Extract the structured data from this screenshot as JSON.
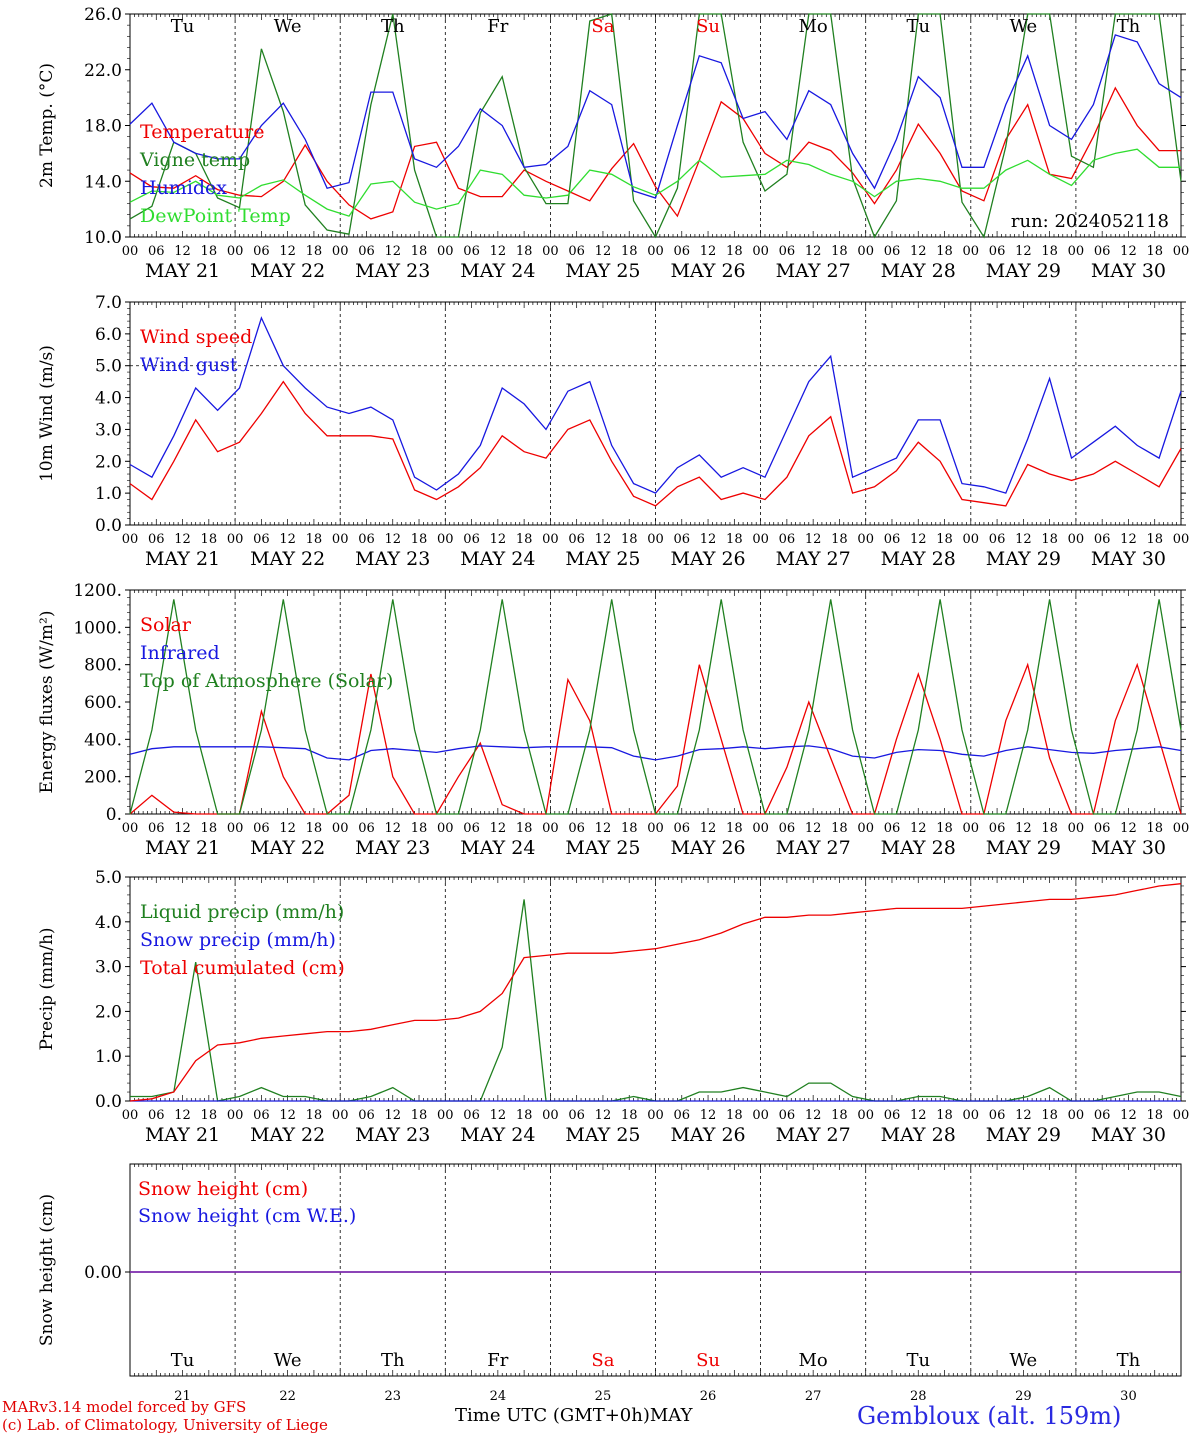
{
  "colors": {
    "temperature": "#ee0000",
    "vigne": "#208020",
    "humidex": "#1818e0",
    "dewpoint": "#30dd30",
    "solar": "#ee0000",
    "infrared": "#1818e0",
    "toa": "#208020",
    "liquid": "#208020",
    "snow": "#1818e0",
    "total": "#ee0000",
    "snow_height": "#ee0000",
    "snow_we": "#1818e0",
    "weekend": "#ee0000"
  },
  "day_names": [
    "Tu",
    "We",
    "Th",
    "Fr",
    "Sa",
    "Su",
    "Mo",
    "Tu",
    "We",
    "Th"
  ],
  "day_numbers": [
    "21",
    "22",
    "23",
    "24",
    "25",
    "26",
    "27",
    "28",
    "29",
    "30"
  ],
  "weekend_days": [
    4,
    5
  ],
  "date_labels": [
    "MAY 21",
    "MAY 22",
    "MAY 23",
    "MAY 24",
    "MAY 25",
    "MAY 26",
    "MAY 27",
    "MAY 28",
    "MAY 29",
    "MAY 30"
  ],
  "hour_ticks": [
    "00",
    "06",
    "12",
    "18"
  ],
  "run_label": "run: 2024052118",
  "footer": {
    "model_line": "MARv3.14 model forced by GFS",
    "lab_line": "(c) Lab. of Climatology, University of Liege",
    "x_axis_label": "Time UTC (GMT+0h)",
    "month": "MAY",
    "station": "Gembloux (alt. 159m)"
  },
  "chart_data": [
    {
      "type": "line",
      "ylabel": "2m Temp. (°C)",
      "ylim": [
        10,
        26
      ],
      "yticks": [
        "10.0",
        "14.0",
        "18.0",
        "22.0",
        "26.0"
      ],
      "x_start": "2024-05-21 00:00",
      "x_step_hours": 6,
      "legend": [
        "Temperature",
        "Vigne temp",
        "Humidex",
        "DewPoint Temp"
      ],
      "series": [
        {
          "name": "Temperature",
          "values": [
            14.6,
            13.6,
            13.5,
            14.4,
            13.4,
            13.0,
            12.9,
            14.0,
            16.6,
            14.0,
            12.3,
            11.3,
            11.8,
            16.5,
            16.8,
            13.5,
            12.9,
            12.9,
            14.8,
            14.0,
            13.3,
            12.6,
            14.9,
            16.7,
            13.6,
            11.5,
            15.5,
            19.7,
            18.5,
            16.0,
            15.0,
            16.8,
            16.2,
            14.6,
            12.4,
            14.8,
            18.1,
            16.0,
            13.3,
            12.6,
            17.0,
            19.5,
            14.5,
            14.2,
            17.2,
            20.7,
            18.0,
            16.2,
            16.2
          ]
        },
        {
          "name": "Vigne temp",
          "values": [
            11.3,
            12.2,
            16.8,
            16.0,
            12.8,
            12.1,
            23.5,
            19.0,
            12.3,
            10.5,
            10.2,
            19.5,
            26.0,
            14.8,
            10.0,
            10.0,
            18.9,
            21.5,
            15.0,
            12.4,
            12.4,
            25.5,
            26.0,
            12.6,
            10.0,
            13.5,
            26.0,
            26.0,
            16.8,
            13.3,
            14.5,
            26.0,
            26.0,
            14.2,
            10.0,
            12.6,
            26.0,
            26.0,
            12.5,
            10.0,
            16.5,
            26.0,
            26.0,
            15.8,
            15.0,
            26.0,
            26.0,
            26.0,
            14.0
          ]
        },
        {
          "name": "Humidex",
          "values": [
            18.1,
            19.6,
            16.8,
            16.0,
            15.6,
            15.6,
            18.0,
            19.6,
            17.0,
            13.5,
            13.9,
            20.4,
            20.4,
            15.6,
            15.0,
            16.5,
            19.2,
            18.0,
            15.0,
            15.2,
            16.5,
            20.5,
            19.5,
            13.3,
            12.8,
            18.0,
            23.0,
            22.5,
            18.5,
            19.0,
            17.0,
            20.5,
            19.5,
            16.0,
            13.5,
            17.0,
            21.5,
            20.0,
            15.0,
            15.0,
            19.5,
            23.0,
            18.0,
            17.0,
            19.5,
            24.5,
            24.0,
            21.0,
            20.0
          ]
        },
        {
          "name": "DewPoint Temp",
          "values": [
            12.5,
            13.3,
            13.2,
            14.0,
            13.0,
            12.8,
            13.7,
            14.1,
            13.0,
            12.0,
            11.5,
            13.8,
            14.0,
            12.5,
            12.0,
            12.4,
            14.8,
            14.5,
            13.0,
            12.8,
            13.0,
            14.8,
            14.5,
            13.6,
            13.0,
            14.0,
            15.5,
            14.3,
            14.4,
            14.5,
            15.5,
            15.2,
            14.5,
            14.0,
            12.9,
            14.0,
            14.2,
            14.0,
            13.5,
            13.5,
            14.8,
            15.5,
            14.5,
            13.7,
            15.5,
            16.0,
            16.3,
            15.0,
            15.0
          ]
        }
      ]
    },
    {
      "type": "line",
      "ylabel": "10m Wind (m/s)",
      "ylim": [
        0,
        7
      ],
      "yticks": [
        "0.0",
        "1.0",
        "2.0",
        "3.0",
        "4.0",
        "5.0",
        "6.0",
        "7.0"
      ],
      "dashed_y": 5,
      "x_start": "2024-05-21 00:00",
      "x_step_hours": 6,
      "legend": [
        "Wind speed",
        "Wind gust"
      ],
      "series": [
        {
          "name": "Wind speed",
          "values": [
            1.3,
            0.8,
            2.0,
            3.3,
            2.3,
            2.6,
            3.5,
            4.5,
            3.5,
            2.8,
            2.8,
            2.8,
            2.7,
            1.1,
            0.8,
            1.2,
            1.8,
            2.8,
            2.3,
            2.1,
            3.0,
            3.3,
            2.0,
            0.9,
            0.6,
            1.2,
            1.5,
            0.8,
            1.0,
            0.8,
            1.5,
            2.8,
            3.4,
            1.0,
            1.2,
            1.7,
            2.6,
            2.0,
            0.8,
            0.7,
            0.6,
            1.9,
            1.6,
            1.4,
            1.6,
            2.0,
            1.6,
            1.2,
            2.4
          ]
        },
        {
          "name": "Wind gust",
          "values": [
            1.9,
            1.5,
            2.8,
            4.3,
            3.6,
            4.3,
            6.5,
            5.0,
            4.3,
            3.7,
            3.5,
            3.7,
            3.3,
            1.5,
            1.1,
            1.6,
            2.5,
            4.3,
            3.8,
            3.0,
            4.2,
            4.5,
            2.5,
            1.3,
            1.0,
            1.8,
            2.2,
            1.5,
            1.8,
            1.5,
            3.0,
            4.5,
            5.3,
            1.5,
            1.8,
            2.1,
            3.3,
            3.3,
            1.3,
            1.2,
            1.0,
            2.7,
            4.6,
            2.1,
            2.6,
            3.1,
            2.5,
            2.1,
            4.2
          ]
        }
      ]
    },
    {
      "type": "line",
      "ylabel": "Energy fluxes (W/m²)",
      "ylim": [
        0,
        1200
      ],
      "yticks": [
        "0.",
        "200.",
        "400.",
        "600.",
        "800.",
        "1000.",
        "1200."
      ],
      "x_start": "2024-05-21 00:00",
      "x_step_hours": 6,
      "legend": [
        "Solar",
        "Infrared",
        "Top of Atmosphere (Solar)"
      ],
      "series": [
        {
          "name": "Solar",
          "values": [
            0,
            100,
            10,
            0,
            0,
            0,
            550,
            200,
            0,
            0,
            100,
            750,
            200,
            0,
            0,
            200,
            380,
            50,
            0,
            0,
            720,
            500,
            0,
            0,
            0,
            150,
            800,
            400,
            0,
            0,
            250,
            600,
            300,
            0,
            0,
            400,
            750,
            400,
            0,
            0,
            500,
            800,
            300,
            0,
            0,
            500,
            800,
            400,
            0
          ]
        },
        {
          "name": "Infrared",
          "values": [
            320,
            350,
            360,
            360,
            360,
            360,
            360,
            355,
            350,
            300,
            290,
            340,
            350,
            340,
            330,
            350,
            365,
            360,
            355,
            360,
            360,
            360,
            355,
            310,
            290,
            310,
            345,
            350,
            360,
            350,
            360,
            365,
            350,
            310,
            300,
            330,
            345,
            340,
            320,
            310,
            340,
            360,
            345,
            330,
            325,
            340,
            350,
            360,
            340
          ]
        },
        {
          "name": "Top of Atmosphere (Solar)",
          "values": [
            0,
            450,
            1150,
            450,
            0,
            0,
            450,
            1150,
            450,
            0,
            0,
            450,
            1150,
            450,
            0,
            0,
            450,
            1150,
            450,
            0,
            0,
            450,
            1150,
            450,
            0,
            0,
            450,
            1150,
            450,
            0,
            0,
            450,
            1150,
            450,
            0,
            0,
            450,
            1150,
            450,
            0,
            0,
            450,
            1150,
            450,
            0,
            0,
            450,
            1150,
            450
          ]
        }
      ]
    },
    {
      "type": "line",
      "ylabel": "Precip (mm/h)",
      "ylim": [
        0,
        5
      ],
      "yticks": [
        "0.0",
        "1.0",
        "2.0",
        "3.0",
        "4.0",
        "5.0"
      ],
      "x_start": "2024-05-21 00:00",
      "x_step_hours": 6,
      "legend": [
        "Liquid precip (mm/h)",
        "Snow precip (mm/h)",
        "Total cumulated (cm)"
      ],
      "series": [
        {
          "name": "Liquid precip (mm/h)",
          "values": [
            0.1,
            0.1,
            0.2,
            3.1,
            0.0,
            0.1,
            0.3,
            0.1,
            0.1,
            0.0,
            0.0,
            0.1,
            0.3,
            0.0,
            0.0,
            0.0,
            0.0,
            1.2,
            4.5,
            0.0,
            0.0,
            0.0,
            0.0,
            0.1,
            0.0,
            0.0,
            0.2,
            0.2,
            0.3,
            0.2,
            0.1,
            0.4,
            0.4,
            0.1,
            0.0,
            0.0,
            0.1,
            0.1,
            0.0,
            0.0,
            0.0,
            0.1,
            0.3,
            0.0,
            0.0,
            0.1,
            0.2,
            0.2,
            0.1
          ]
        },
        {
          "name": "Snow precip (mm/h)",
          "values": [
            0,
            0,
            0,
            0,
            0,
            0,
            0,
            0,
            0,
            0,
            0,
            0,
            0,
            0,
            0,
            0,
            0,
            0,
            0,
            0,
            0,
            0,
            0,
            0,
            0,
            0,
            0,
            0,
            0,
            0,
            0,
            0,
            0,
            0,
            0,
            0,
            0,
            0,
            0,
            0,
            0,
            0,
            0,
            0,
            0,
            0,
            0,
            0,
            0
          ]
        },
        {
          "name": "Total cumulated (cm)",
          "values": [
            0.0,
            0.05,
            0.2,
            0.9,
            1.25,
            1.3,
            1.4,
            1.45,
            1.5,
            1.55,
            1.55,
            1.6,
            1.7,
            1.8,
            1.8,
            1.85,
            2.0,
            2.4,
            3.2,
            3.25,
            3.3,
            3.3,
            3.3,
            3.35,
            3.4,
            3.5,
            3.6,
            3.75,
            3.95,
            4.1,
            4.1,
            4.15,
            4.15,
            4.2,
            4.25,
            4.3,
            4.3,
            4.3,
            4.3,
            4.35,
            4.4,
            4.45,
            4.5,
            4.5,
            4.55,
            4.6,
            4.7,
            4.8,
            4.85
          ]
        }
      ]
    },
    {
      "type": "line",
      "ylabel": "Snow height (cm)",
      "yticks": [
        "0.00"
      ],
      "x_start": "2024-05-21 00:00",
      "x_step_hours": 6,
      "legend": [
        "Snow height (cm)",
        "Snow height (cm W.E.)"
      ],
      "series": [
        {
          "name": "Snow height (cm)",
          "values": [
            0,
            0,
            0,
            0,
            0,
            0,
            0,
            0,
            0,
            0,
            0,
            0,
            0,
            0,
            0,
            0,
            0,
            0,
            0,
            0,
            0,
            0,
            0,
            0,
            0,
            0,
            0,
            0,
            0,
            0,
            0,
            0,
            0,
            0,
            0,
            0,
            0,
            0,
            0,
            0,
            0,
            0,
            0,
            0,
            0,
            0,
            0,
            0,
            0
          ]
        },
        {
          "name": "Snow height (cm W.E.)",
          "values": [
            0,
            0,
            0,
            0,
            0,
            0,
            0,
            0,
            0,
            0,
            0,
            0,
            0,
            0,
            0,
            0,
            0,
            0,
            0,
            0,
            0,
            0,
            0,
            0,
            0,
            0,
            0,
            0,
            0,
            0,
            0,
            0,
            0,
            0,
            0,
            0,
            0,
            0,
            0,
            0,
            0,
            0,
            0,
            0,
            0,
            0,
            0,
            0,
            0
          ]
        }
      ]
    }
  ]
}
